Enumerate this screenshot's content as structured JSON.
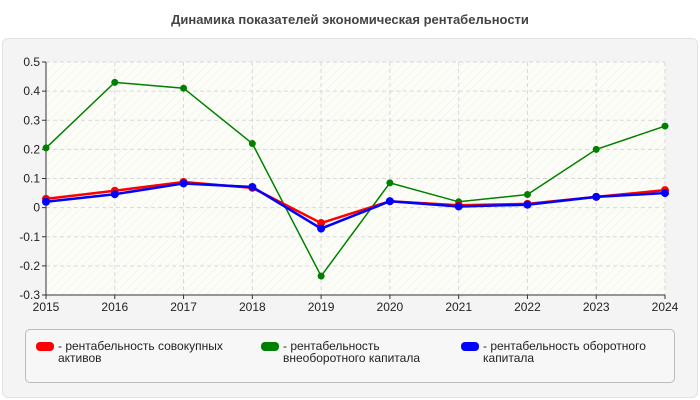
{
  "chart_data": {
    "type": "line",
    "title": "Динамика показателей экономическая рентабельности",
    "x": [
      "2015",
      "2016",
      "2017",
      "2018",
      "2019",
      "2020",
      "2021",
      "2022",
      "2023",
      "2024"
    ],
    "ylim": [
      -0.3,
      0.5
    ],
    "yticks": [
      "0.5",
      "0.4",
      "0.3",
      "0.2",
      "0.1",
      "0",
      "-0.1",
      "-0.2",
      "-0.3"
    ],
    "grid": true,
    "legend_placement": "bottom",
    "series": [
      {
        "name": "- рентабельность совокупных активов",
        "color": "#ff0000",
        "values": [
          0.03,
          0.058,
          0.088,
          0.068,
          -0.053,
          0.022,
          0.008,
          0.013,
          0.037,
          0.06
        ]
      },
      {
        "name": "- рентабельность внеоборотного капитала",
        "color": "#008000",
        "values": [
          0.205,
          0.43,
          0.41,
          0.22,
          -0.235,
          0.085,
          0.02,
          0.045,
          0.2,
          0.28
        ]
      },
      {
        "name": "- рентабельность оборотного капитала",
        "color": "#0000ff",
        "values": [
          0.02,
          0.046,
          0.083,
          0.071,
          -0.072,
          0.022,
          0.004,
          0.01,
          0.037,
          0.05
        ]
      }
    ]
  }
}
